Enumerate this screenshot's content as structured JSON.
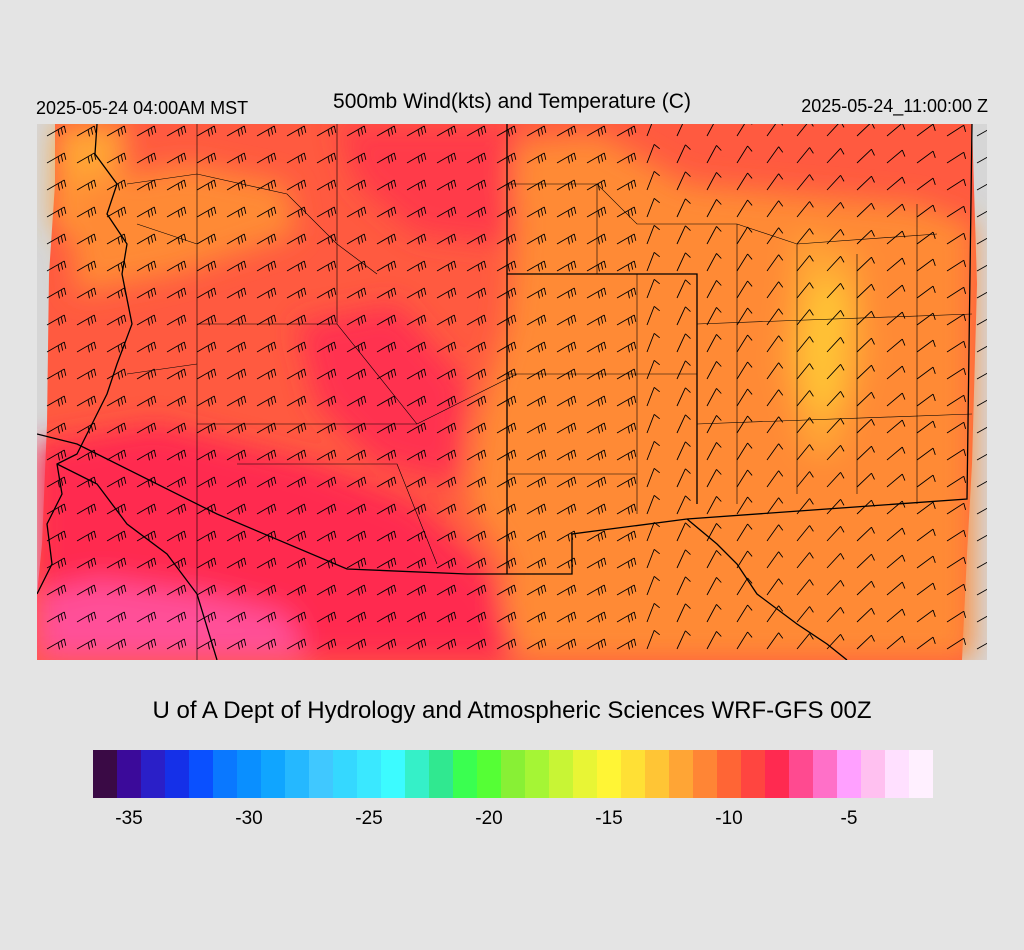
{
  "header": {
    "local_time": "2025-05-24 04:00AM MST",
    "title": "500mb Wind(kts) and Temperature (C)",
    "valid_time": "2025-05-24_11:00:00 Z"
  },
  "footer": {
    "credit": "U of A Dept of Hydrology and Atmospheric Sciences WRF-GFS 00Z"
  },
  "colorbar": {
    "min": -36,
    "max": -1,
    "ticks": [
      "-35",
      "-30",
      "-25",
      "-20",
      "-15",
      "-10",
      "-5"
    ],
    "tick_values": [
      -35,
      -30,
      -25,
      -20,
      -15,
      -10,
      -5
    ],
    "colors": [
      "#3a0a45",
      "#3b0a9a",
      "#2a1fc8",
      "#1530e8",
      "#0a50ff",
      "#0a78ff",
      "#0a8fff",
      "#10a5ff",
      "#25b8ff",
      "#40c8ff",
      "#35d8ff",
      "#3ae8ff",
      "#3cfbff",
      "#35f0c8",
      "#30e890",
      "#3aff50",
      "#55ff35",
      "#88f035",
      "#a5f535",
      "#c8f535",
      "#e8f535",
      "#fff535",
      "#ffe035",
      "#ffc535",
      "#ffa535",
      "#ff8535",
      "#ff6535",
      "#ff4540",
      "#ff2a50",
      "#ff4a90",
      "#ff70c8",
      "#ffa0ff",
      "#ffc0f0",
      "#ffe0ff",
      "#fff0ff"
    ]
  },
  "map": {
    "background_color": "#ff5a40",
    "colors": {
      "warm_orange": "#ff8a35",
      "amber": "#ffa535",
      "yellow_orange": "#ffc535",
      "red": "#ff4040",
      "crimson": "#ff2a50",
      "pink": "#ff5098",
      "boundary": "#000000",
      "no_data": "#d6d6d6"
    }
  }
}
